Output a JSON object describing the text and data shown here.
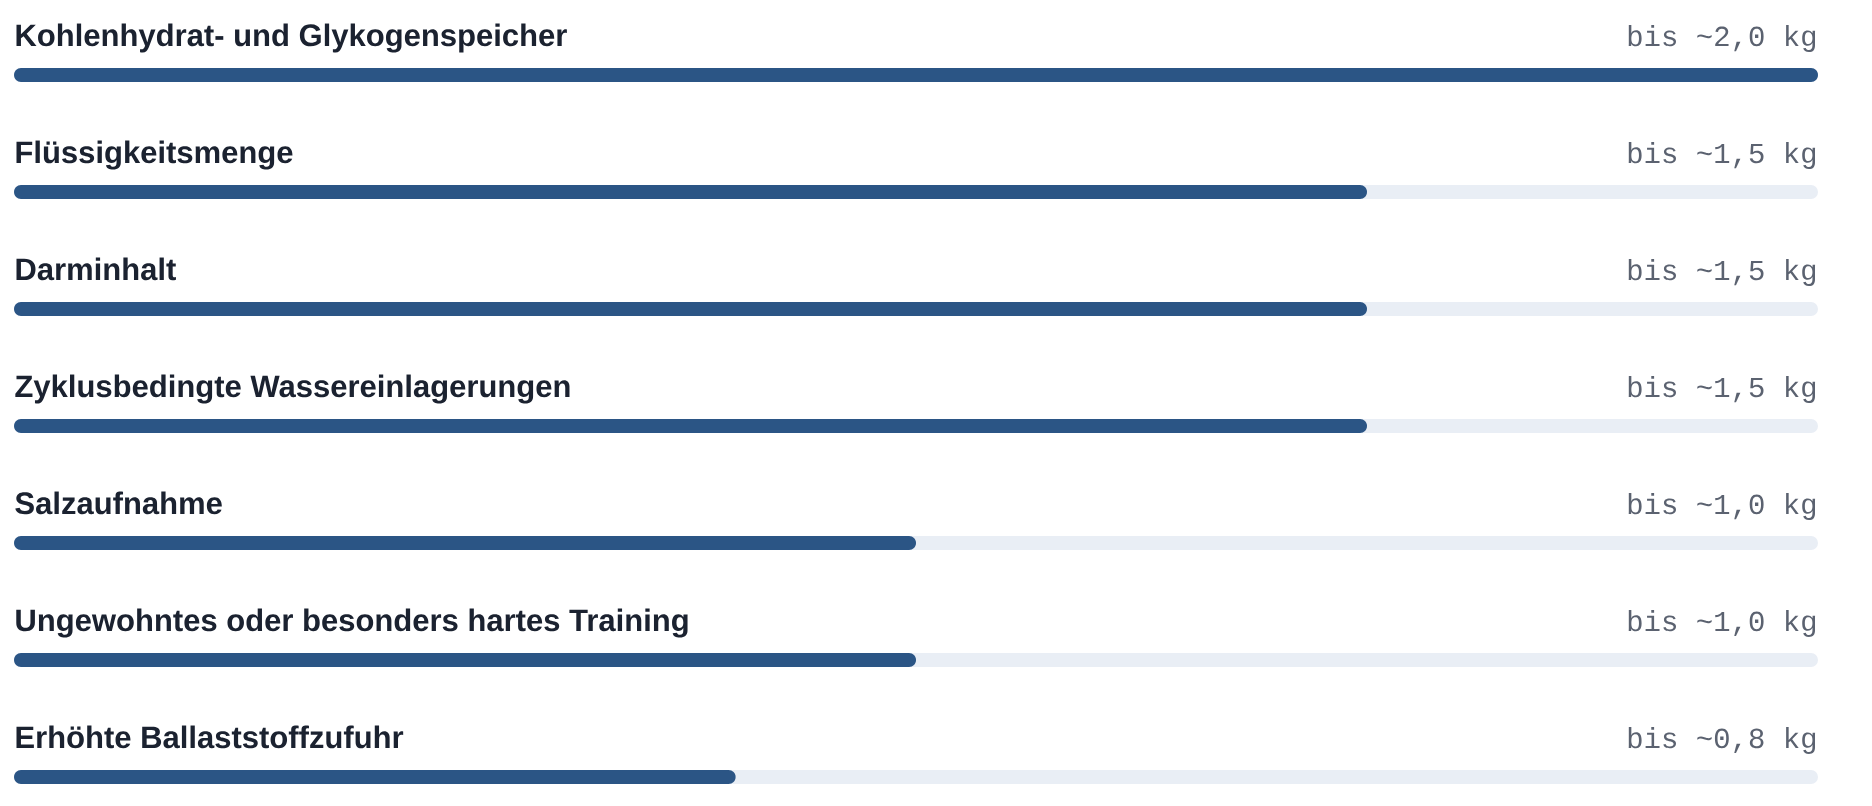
{
  "chart_data": {
    "type": "bar",
    "orientation": "horizontal",
    "categories": [
      "Kohlenhydrat- und Glykogenspeicher",
      "Flüssigkeitsmenge",
      "Darminhalt",
      "Zyklusbedingte Wassereinlagerungen",
      "Salzaufnahme",
      "Ungewohntes oder besonders hartes Training",
      "Erhöhte Ballaststoffzufuhr"
    ],
    "values": [
      2.0,
      1.5,
      1.5,
      1.5,
      1.0,
      1.0,
      0.8
    ],
    "value_labels": [
      "bis ~2,0 kg",
      "bis ~1,5 kg",
      "bis ~1,5 kg",
      "bis ~1,5 kg",
      "bis ~1,0 kg",
      "bis ~1,0 kg",
      "bis ~0,8 kg"
    ],
    "color": "#2b5585"
  }
}
